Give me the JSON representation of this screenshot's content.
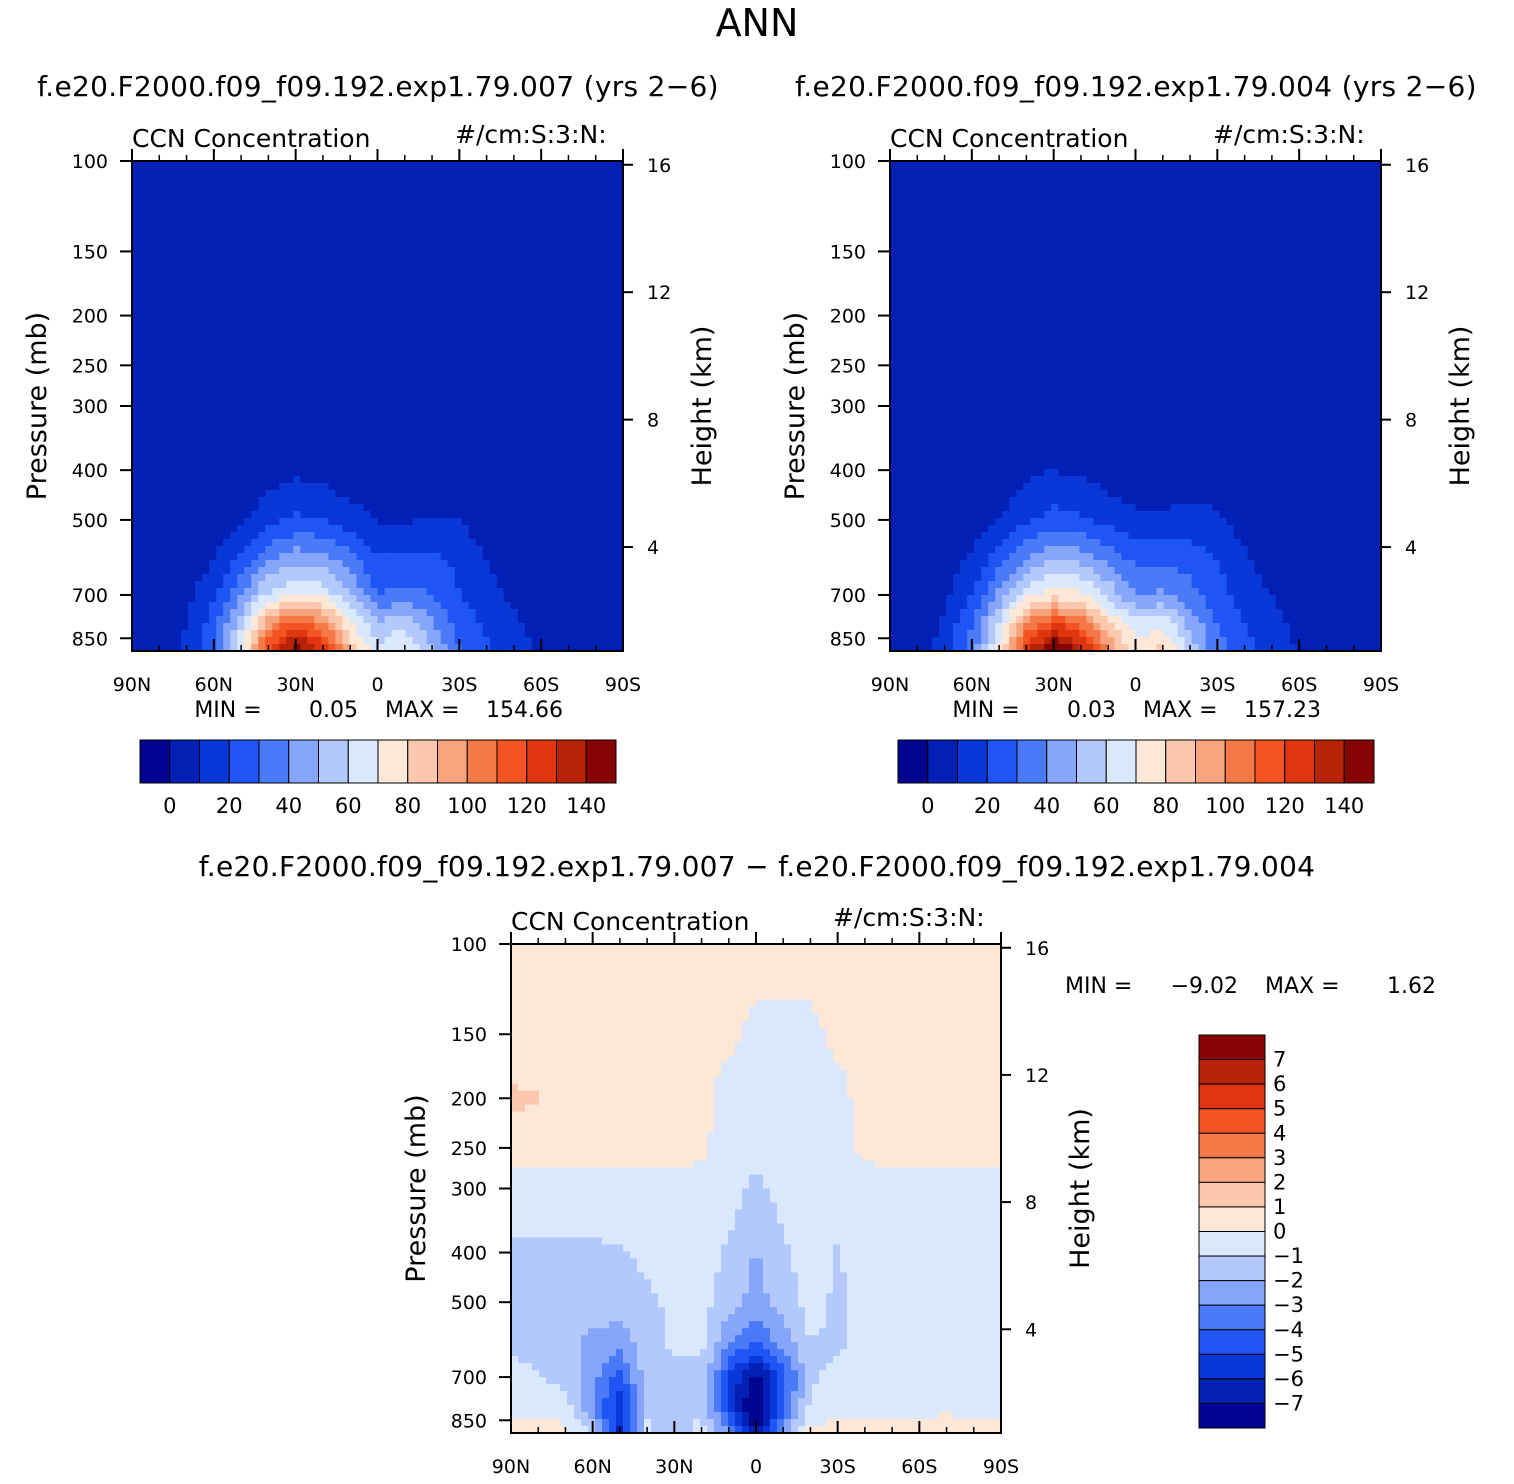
{
  "figure": {
    "season": "ANN",
    "colors": {
      "abs_levels": [
        "#00058f",
        "#0220b5",
        "#0a37d8",
        "#1f55f5",
        "#4a7af8",
        "#85a6fa",
        "#b3c9fb",
        "#d9e8fc",
        "#fde8d7",
        "#fbc7ad",
        "#f7a37e",
        "#f57847",
        "#f35422",
        "#e03610",
        "#b82206",
        "#870404"
      ],
      "diff_levels": [
        "#00058f",
        "#0220b5",
        "#0a37d8",
        "#1f55f5",
        "#4a7af8",
        "#85a6fa",
        "#b3c9fb",
        "#d9e8fc",
        "#fde8d7",
        "#fbc7ad",
        "#f7a37e",
        "#f57847",
        "#f35422",
        "#e03610",
        "#b82206",
        "#870404"
      ]
    }
  },
  "chart_data": [
    {
      "type": "heatmap",
      "title": "f.e20.F2000.f09_f09.192.exp1.79.007 (yrs 2−6)",
      "variable": "CCN Concentration",
      "units": "#/cm:S:3:N:",
      "ylabel": "Pressure (mb)",
      "ylabel_right": "Height (km)",
      "x_ticks": [
        "90N",
        "60N",
        "30N",
        "0",
        "30S",
        "60S",
        "90S"
      ],
      "y_ticks": [
        "100",
        "150",
        "200",
        "250",
        "300",
        "400",
        "500",
        "700",
        "850"
      ],
      "y_ticks_right": [
        "16",
        "12",
        "8",
        "4"
      ],
      "min_label": "MIN =",
      "min_value": "0.05",
      "max_label": "MAX =",
      "max_value": "154.66",
      "min": 0.05,
      "max": 154.66,
      "colorbar_levels": [
        -10,
        0,
        10,
        20,
        30,
        40,
        50,
        60,
        70,
        80,
        90,
        100,
        110,
        120,
        130,
        140,
        150
      ],
      "colorbar_ticks": [
        "0",
        "20",
        "40",
        "60",
        "80",
        "100",
        "120",
        "140"
      ],
      "field": {
        "lat": [
          90,
          80,
          70,
          60,
          50,
          40,
          30,
          20,
          10,
          0,
          -10,
          -20,
          -30,
          -40,
          -50,
          -60,
          -70,
          -80,
          -90
        ],
        "plev": [
          100,
          150,
          200,
          250,
          300,
          400,
          500,
          600,
          700,
          800,
          900
        ],
        "values": [
          [
            0.5,
            0.5,
            0.5,
            0.5,
            0.5,
            0.5,
            0.5,
            0.5,
            0.5,
            0.5,
            0.5,
            0.5,
            0.5,
            0.5,
            0.5,
            0.5,
            0.5,
            0.5,
            0.5
          ],
          [
            0.6,
            0.6,
            0.6,
            0.6,
            0.6,
            0.6,
            0.6,
            0.6,
            0.6,
            0.6,
            0.6,
            0.6,
            0.6,
            0.6,
            0.6,
            0.6,
            0.6,
            0.6,
            0.6
          ],
          [
            0.8,
            0.8,
            0.8,
            0.8,
            0.8,
            0.8,
            0.8,
            0.8,
            0.8,
            0.8,
            0.8,
            0.8,
            0.8,
            0.8,
            0.8,
            0.8,
            0.8,
            0.8,
            0.8
          ],
          [
            1,
            1,
            1,
            1,
            1,
            1,
            1,
            1,
            1,
            1,
            1,
            1,
            1,
            1,
            1,
            1,
            1,
            1,
            1
          ],
          [
            1,
            1,
            1,
            1,
            1,
            1,
            1,
            1,
            1,
            1,
            1,
            1,
            1,
            1,
            1,
            1,
            1,
            1,
            1
          ],
          [
            1,
            1,
            1,
            1,
            2,
            6,
            8,
            6,
            3,
            2,
            2,
            2,
            2,
            1,
            1,
            1,
            1,
            1,
            1
          ],
          [
            1,
            1,
            2,
            3,
            8,
            16,
            22,
            20,
            15,
            9,
            9,
            11,
            10,
            4,
            1,
            1,
            1,
            1,
            1
          ],
          [
            1,
            1,
            4,
            10,
            24,
            40,
            48,
            45,
            35,
            22,
            22,
            22,
            18,
            10,
            4,
            2,
            1,
            1,
            1
          ],
          [
            1,
            2,
            7,
            18,
            40,
            62,
            72,
            68,
            50,
            30,
            34,
            30,
            20,
            14,
            8,
            4,
            2,
            1,
            1
          ],
          [
            1,
            3,
            10,
            26,
            58,
            98,
            118,
            104,
            72,
            52,
            58,
            42,
            26,
            18,
            12,
            6,
            3,
            1,
            1
          ],
          [
            1,
            4,
            12,
            30,
            68,
            122,
            150,
            130,
            88,
            64,
            72,
            50,
            30,
            22,
            14,
            8,
            3,
            1,
            1
          ]
        ]
      }
    },
    {
      "type": "heatmap",
      "title": "f.e20.F2000.f09_f09.192.exp1.79.004 (yrs 2−6)",
      "variable": "CCN Concentration",
      "units": "#/cm:S:3:N:",
      "ylabel": "Pressure (mb)",
      "ylabel_right": "Height (km)",
      "x_ticks": [
        "90N",
        "60N",
        "30N",
        "0",
        "30S",
        "60S",
        "90S"
      ],
      "y_ticks": [
        "100",
        "150",
        "200",
        "250",
        "300",
        "400",
        "500",
        "700",
        "850"
      ],
      "y_ticks_right": [
        "16",
        "12",
        "8",
        "4"
      ],
      "min_label": "MIN =",
      "min_value": "0.03",
      "max_label": "MAX =",
      "max_value": "157.23",
      "min": 0.03,
      "max": 157.23,
      "colorbar_levels": [
        -10,
        0,
        10,
        20,
        30,
        40,
        50,
        60,
        70,
        80,
        90,
        100,
        110,
        120,
        130,
        140,
        150
      ],
      "colorbar_ticks": [
        "0",
        "20",
        "40",
        "60",
        "80",
        "100",
        "120",
        "140"
      ],
      "field": {
        "lat": [
          90,
          80,
          70,
          60,
          50,
          40,
          30,
          20,
          10,
          0,
          -10,
          -20,
          -30,
          -40,
          -50,
          -60,
          -70,
          -80,
          -90
        ],
        "plev": [
          100,
          150,
          200,
          250,
          300,
          400,
          500,
          600,
          700,
          800,
          900
        ],
        "values": [
          [
            0.5,
            0.5,
            0.5,
            0.5,
            0.5,
            0.5,
            0.5,
            0.5,
            0.5,
            0.5,
            0.5,
            0.5,
            0.5,
            0.5,
            0.5,
            0.5,
            0.5,
            0.5,
            0.5
          ],
          [
            0.6,
            0.6,
            0.6,
            0.6,
            0.6,
            0.6,
            0.6,
            0.6,
            0.6,
            0.6,
            0.6,
            0.6,
            0.6,
            0.6,
            0.6,
            0.6,
            0.6,
            0.6,
            0.6
          ],
          [
            0.8,
            0.8,
            0.8,
            0.8,
            0.8,
            0.8,
            0.8,
            0.8,
            0.8,
            0.8,
            0.8,
            0.8,
            0.8,
            0.8,
            0.8,
            0.8,
            0.8,
            0.8,
            0.8
          ],
          [
            1,
            1,
            1,
            1,
            1,
            1,
            1,
            1,
            1,
            1,
            1,
            1,
            1,
            1,
            1,
            1,
            1,
            1,
            1
          ],
          [
            1,
            1,
            1,
            1,
            1,
            1,
            1,
            1,
            1,
            1,
            1,
            1,
            1,
            1,
            1,
            1,
            1,
            1,
            1
          ],
          [
            1,
            1,
            1,
            1,
            3,
            8,
            10,
            8,
            5,
            3,
            3,
            4,
            3,
            1,
            1,
            1,
            1,
            1,
            1
          ],
          [
            1,
            1,
            2,
            4,
            10,
            18,
            24,
            22,
            17,
            12,
            12,
            14,
            12,
            5,
            1,
            1,
            1,
            1,
            1
          ],
          [
            1,
            1,
            5,
            12,
            26,
            42,
            52,
            48,
            38,
            28,
            28,
            26,
            20,
            12,
            5,
            2,
            1,
            1,
            1
          ],
          [
            1,
            2,
            8,
            20,
            44,
            66,
            76,
            72,
            58,
            40,
            42,
            34,
            24,
            16,
            10,
            5,
            2,
            1,
            1
          ],
          [
            1,
            3,
            12,
            30,
            62,
            102,
            122,
            110,
            82,
            64,
            68,
            48,
            30,
            20,
            14,
            7,
            3,
            1,
            1
          ],
          [
            1,
            4,
            14,
            34,
            72,
            126,
            155,
            136,
            100,
            76,
            84,
            56,
            34,
            24,
            16,
            9,
            3,
            1,
            1
          ]
        ]
      }
    },
    {
      "type": "heatmap",
      "title": "f.e20.F2000.f09_f09.192.exp1.79.007 − f.e20.F2000.f09_f09.192.exp1.79.004",
      "variable": "CCN Concentration",
      "units": "#/cm:S:3:N:",
      "ylabel": "Pressure (mb)",
      "ylabel_right": "Height (km)",
      "x_ticks": [
        "90N",
        "60N",
        "30N",
        "0",
        "30S",
        "60S",
        "90S"
      ],
      "y_ticks": [
        "100",
        "150",
        "200",
        "250",
        "300",
        "400",
        "500",
        "700",
        "850"
      ],
      "y_ticks_right": [
        "16",
        "12",
        "8",
        "4"
      ],
      "min_label": "MIN =",
      "min_value": "−9.02",
      "max_label": "MAX =",
      "max_value": "1.62",
      "min": -9.02,
      "max": 1.62,
      "colorbar_levels": [
        -8,
        -7,
        -6,
        -5,
        -4,
        -3,
        -2,
        -1,
        0,
        1,
        2,
        3,
        4,
        5,
        6,
        7,
        8
      ],
      "colorbar_ticks": [
        "7",
        "6",
        "5",
        "4",
        "3",
        "2",
        "1",
        "0",
        "−1",
        "−2",
        "−3",
        "−4",
        "−5",
        "−6",
        "−7"
      ],
      "field": {
        "lat": [
          90,
          80,
          70,
          60,
          50,
          40,
          30,
          20,
          10,
          0,
          -10,
          -20,
          -30,
          -40,
          -50,
          -60,
          -70,
          -80,
          -90
        ],
        "plev": [
          100,
          150,
          200,
          250,
          300,
          400,
          500,
          600,
          700,
          800,
          900
        ],
        "values": [
          [
            0.3,
            0.3,
            0.3,
            0.3,
            0.3,
            0.3,
            0.3,
            0.3,
            0.3,
            0.3,
            0.3,
            0.3,
            0.3,
            0.3,
            0.3,
            0.3,
            0.3,
            0.3,
            0.3
          ],
          [
            0.3,
            0.3,
            0.3,
            0.3,
            0.3,
            0.3,
            0.3,
            0.3,
            0.2,
            -0.2,
            -0.2,
            -0.2,
            0.2,
            0.3,
            0.3,
            0.3,
            0.3,
            0.3,
            0.3
          ],
          [
            1.2,
            1.1,
            0.4,
            0.3,
            0.3,
            0.3,
            0.3,
            0.3,
            -0.4,
            -0.5,
            -0.5,
            -0.5,
            -0.3,
            0.3,
            0.3,
            0.3,
            0.3,
            0.3,
            0.3
          ],
          [
            0.3,
            0.3,
            0.3,
            0.3,
            0.3,
            0.3,
            0.3,
            0.2,
            -0.5,
            -0.6,
            -0.6,
            -0.5,
            -0.4,
            0.2,
            0.3,
            0.3,
            0.3,
            0.3,
            0.3
          ],
          [
            -0.4,
            -0.4,
            -0.4,
            -0.4,
            -0.4,
            -0.4,
            -0.4,
            -0.4,
            -0.5,
            -1.3,
            -0.6,
            -0.5,
            -0.5,
            -0.4,
            -0.4,
            -0.4,
            -0.4,
            -0.4,
            -0.4
          ],
          [
            -1.2,
            -1.2,
            -1.2,
            -1.2,
            -1.1,
            -0.8,
            -0.6,
            -0.5,
            -1.2,
            -2.1,
            -1.2,
            -0.5,
            -1.1,
            -0.5,
            -0.4,
            -0.4,
            -0.4,
            -0.4,
            -0.4
          ],
          [
            -1.2,
            -1.3,
            -1.3,
            -1.4,
            -1.4,
            -1.2,
            -0.8,
            -0.6,
            -1.6,
            -2.4,
            -1.5,
            -0.6,
            -1.2,
            -0.5,
            -0.4,
            -0.4,
            -0.4,
            -0.4,
            -0.4
          ],
          [
            -1.3,
            -1.3,
            -1.6,
            -2.4,
            -2.6,
            -1.4,
            -0.8,
            -0.8,
            -3.0,
            -4.0,
            -2.6,
            -1.0,
            -1.2,
            -0.6,
            -0.5,
            -0.5,
            -0.5,
            -0.5,
            -0.5
          ],
          [
            -0.6,
            -0.9,
            -1.3,
            -2.6,
            -4.4,
            -1.4,
            -1.4,
            -1.2,
            -5.0,
            -7.5,
            -4.5,
            -1.2,
            -0.7,
            -0.5,
            -0.4,
            -0.4,
            -0.4,
            -0.4,
            -0.4
          ],
          [
            -0.3,
            -0.5,
            -0.6,
            -2.8,
            -5.8,
            -1.2,
            -1.6,
            -1.4,
            -4.8,
            -8.8,
            -4.2,
            -0.8,
            -0.4,
            -0.3,
            -0.3,
            -0.3,
            -0.3,
            -0.3,
            -0.3
          ],
          [
            0.4,
            0.6,
            0.4,
            -1.2,
            -6.2,
            -0.8,
            -1.8,
            -0.4,
            -3.0,
            -7.0,
            -2.6,
            0.4,
            0.4,
            0.6,
            0.5,
            0.4,
            0.7,
            0.4,
            0.3
          ]
        ]
      }
    }
  ]
}
